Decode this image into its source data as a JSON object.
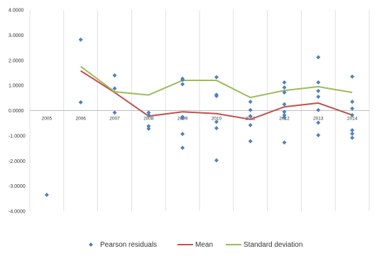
{
  "chart_data": {
    "type": "line",
    "title": "",
    "xlabel": "",
    "ylabel": "",
    "categories": [
      "2005",
      "2006",
      "2007",
      "2008",
      "2009",
      "2010",
      "2011",
      "2012",
      "2013",
      "2014"
    ],
    "y_tick_labels": [
      "4.0000",
      "3.0000",
      "2.0000",
      "1.0000",
      "0.0000",
      "-1.0000",
      "-2.0000",
      "-3.0000",
      "-4.0000"
    ],
    "ylim": [
      -4,
      4
    ],
    "grid": "vertical",
    "legend_position": "bottom",
    "series": [
      {
        "name": "Pearson residuals",
        "kind": "scatter",
        "color": "#4f81bd",
        "points": [
          [
            "2005",
            -3.35
          ],
          [
            "2006",
            2.82
          ],
          [
            "2006",
            0.33
          ],
          [
            "2007",
            1.4
          ],
          [
            "2007",
            0.88
          ],
          [
            "2007",
            -0.08
          ],
          [
            "2008",
            -0.08
          ],
          [
            "2008",
            -0.18
          ],
          [
            "2008",
            -0.62
          ],
          [
            "2008",
            -0.72
          ],
          [
            "2009",
            1.27
          ],
          [
            "2009",
            1.22
          ],
          [
            "2009",
            1.05
          ],
          [
            "2009",
            -0.25
          ],
          [
            "2009",
            -0.3
          ],
          [
            "2009",
            -0.93
          ],
          [
            "2009",
            -1.48
          ],
          [
            "2010",
            1.33
          ],
          [
            "2010",
            0.63
          ],
          [
            "2010",
            0.58
          ],
          [
            "2010",
            -0.45
          ],
          [
            "2010",
            -0.7
          ],
          [
            "2010",
            -1.98
          ],
          [
            "2011",
            0.35
          ],
          [
            "2011",
            0.02
          ],
          [
            "2011",
            -0.22
          ],
          [
            "2011",
            -0.58
          ],
          [
            "2011",
            -1.22
          ],
          [
            "2012",
            1.12
          ],
          [
            "2012",
            0.92
          ],
          [
            "2012",
            0.72
          ],
          [
            "2012",
            0.25
          ],
          [
            "2012",
            -0.05
          ],
          [
            "2012",
            -0.18
          ],
          [
            "2012",
            -0.28
          ],
          [
            "2012",
            -1.27
          ],
          [
            "2013",
            2.12
          ],
          [
            "2013",
            1.12
          ],
          [
            "2013",
            0.78
          ],
          [
            "2013",
            0.55
          ],
          [
            "2013",
            0.02
          ],
          [
            "2013",
            -0.48
          ],
          [
            "2013",
            -0.98
          ],
          [
            "2014",
            1.35
          ],
          [
            "2014",
            0.35
          ],
          [
            "2014",
            0.08
          ],
          [
            "2014",
            -0.18
          ],
          [
            "2014",
            -0.78
          ],
          [
            "2014",
            -0.92
          ],
          [
            "2014",
            -1.08
          ]
        ]
      },
      {
        "name": "Mean",
        "kind": "line",
        "color": "#c0504d",
        "values": [
          null,
          1.58,
          0.72,
          -0.22,
          -0.05,
          -0.12,
          -0.35,
          0.15,
          0.3,
          -0.18
        ]
      },
      {
        "name": "Standard deviation",
        "kind": "line",
        "color": "#9bbb59",
        "values": [
          null,
          1.75,
          0.75,
          0.62,
          1.2,
          1.2,
          0.52,
          0.8,
          0.95,
          0.72
        ]
      }
    ]
  }
}
